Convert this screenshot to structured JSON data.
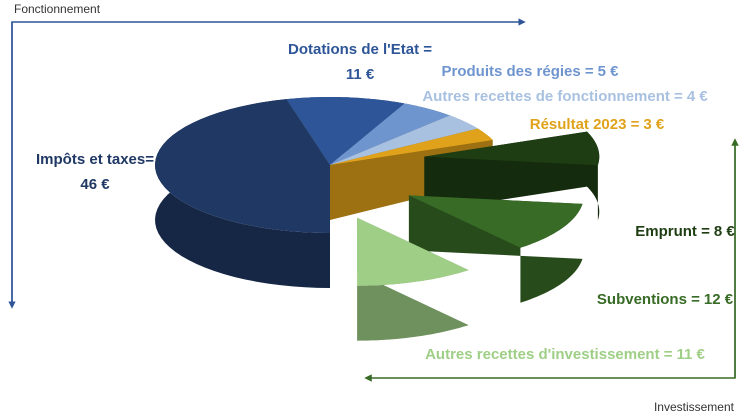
{
  "chart_data": {
    "type": "pie3d",
    "categories": [
      "Impôts et taxes=",
      "Dotations de l'Etat =",
      "Produits des régies =",
      "Autres recettes de fonctionnement =",
      "Résultat 2023 =",
      "Emprunt =",
      "Subventions =",
      "Autres recettes d'investissement ="
    ],
    "values": [
      46,
      11,
      5,
      4,
      3,
      8,
      12,
      11
    ],
    "value_labels": [
      "46 €",
      "11 €",
      "5 €",
      "4 €",
      "3 €",
      "8 €",
      "12 €",
      "11 €"
    ],
    "colors": [
      "#1f3864",
      "#2e5597",
      "#6f95cf",
      "#a9c1e0",
      "#e0a21a",
      "#1e3d12",
      "#386b26",
      "#9fcf86"
    ],
    "annotations": [
      "Fonctionnement",
      "Investissement"
    ]
  }
}
